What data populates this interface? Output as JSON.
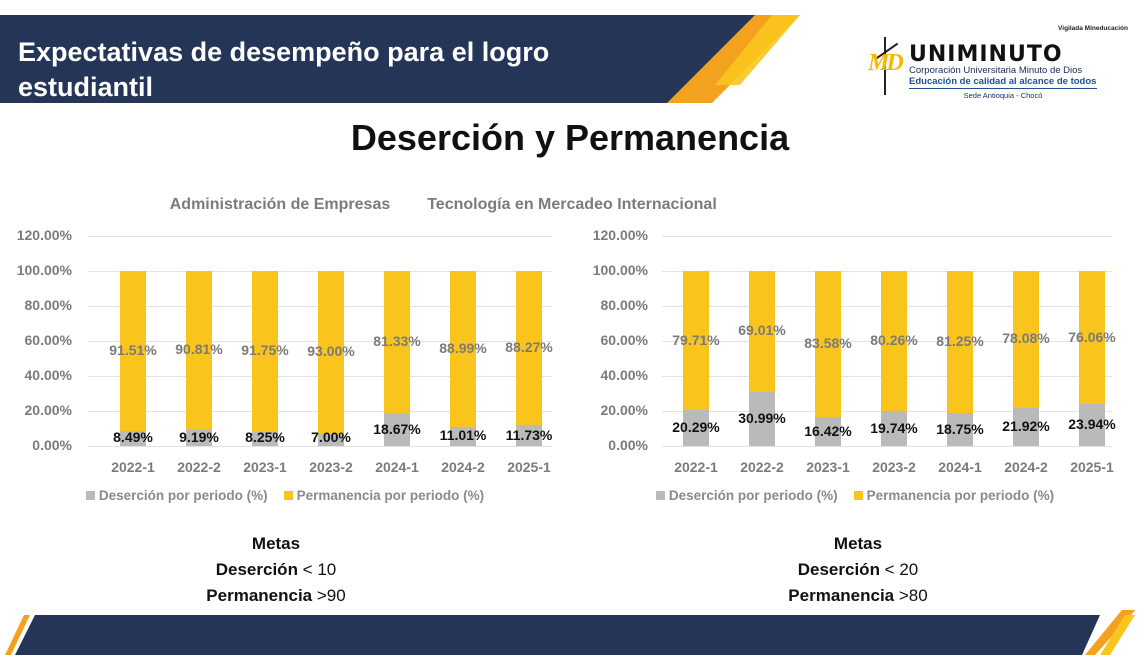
{
  "header": {
    "title": "Expectativas de desempeño para el logro estudiantil",
    "colors": {
      "navy": "#243558",
      "orange": "#f3a21f",
      "yellow": "#f9c51d"
    }
  },
  "logo": {
    "vigilada": "Vigilada Mineducación",
    "initials": "MD",
    "name": "UNIMINUTO",
    "subtitle": "Corporación Universitaria Minuto de Dios",
    "tagline": "Educación de calidad al alcance de todos",
    "sede": "Sede Antioquia - Chocó"
  },
  "page_title": "Deserción y Permanencia",
  "chart_data": [
    {
      "type": "bar",
      "stacked": true,
      "title": "Administración de Empresas",
      "categories": [
        "2022-1",
        "2022-2",
        "2023-1",
        "2023-2",
        "2024-1",
        "2024-2",
        "2025-1"
      ],
      "series": [
        {
          "name": "Deserción por periodo (%)",
          "color": "#bababa",
          "values": [
            8.49,
            9.19,
            8.25,
            7.0,
            18.67,
            11.01,
            11.73
          ],
          "labels": [
            "8.49%",
            "9.19%",
            "8.25%",
            "7.00%",
            "18.67%",
            "11.01%",
            "11.73%"
          ]
        },
        {
          "name": "Permanencia por periodo (%)",
          "color": "#f9c51d",
          "values": [
            91.51,
            90.81,
            91.75,
            93.0,
            81.33,
            88.99,
            88.27
          ],
          "labels": [
            "91.51%",
            "90.81%",
            "91.75%",
            "93.00%",
            "81.33%",
            "88.99%",
            "88.27%"
          ]
        }
      ],
      "yticks": [
        "120.00%",
        "100.00%",
        "80.00%",
        "60.00%",
        "40.00%",
        "20.00%",
        "0.00%"
      ],
      "ylim": [
        0,
        120
      ],
      "xlabel": "",
      "ylabel": "",
      "grid": true,
      "legend_position": "bottom"
    },
    {
      "type": "bar",
      "stacked": true,
      "title": "Tecnología en Mercadeo Internacional",
      "categories": [
        "2022-1",
        "2022-2",
        "2023-1",
        "2023-2",
        "2024-1",
        "2024-2",
        "2025-1"
      ],
      "series": [
        {
          "name": "Deserción por periodo (%)",
          "color": "#bababa",
          "values": [
            20.29,
            30.99,
            16.42,
            19.74,
            18.75,
            21.92,
            23.94
          ],
          "labels": [
            "20.29%",
            "30.99%",
            "16.42%",
            "19.74%",
            "18.75%",
            "21.92%",
            "23.94%"
          ]
        },
        {
          "name": "Permanencia por periodo (%)",
          "color": "#f9c51d",
          "values": [
            79.71,
            69.01,
            83.58,
            80.26,
            81.25,
            78.08,
            76.06
          ],
          "labels": [
            "79.71%",
            "69.01%",
            "83.58%",
            "80.26%",
            "81.25%",
            "78.08%",
            "76.06%"
          ]
        }
      ],
      "yticks": [
        "120.00%",
        "100.00%",
        "80.00%",
        "60.00%",
        "40.00%",
        "20.00%",
        "0.00%"
      ],
      "ylim": [
        0,
        120
      ],
      "xlabel": "",
      "ylabel": "",
      "grid": true,
      "legend_position": "bottom"
    }
  ],
  "goals": [
    {
      "heading": "Metas",
      "desercion_label": "Deserción",
      "desercion_value": " < 10",
      "permanencia_label": "Permanencia",
      "permanencia_value": " >90"
    },
    {
      "heading": "Metas",
      "desercion_label": "Deserción",
      "desercion_value": " < 20",
      "permanencia_label": "Permanencia",
      "permanencia_value": " >80"
    }
  ]
}
